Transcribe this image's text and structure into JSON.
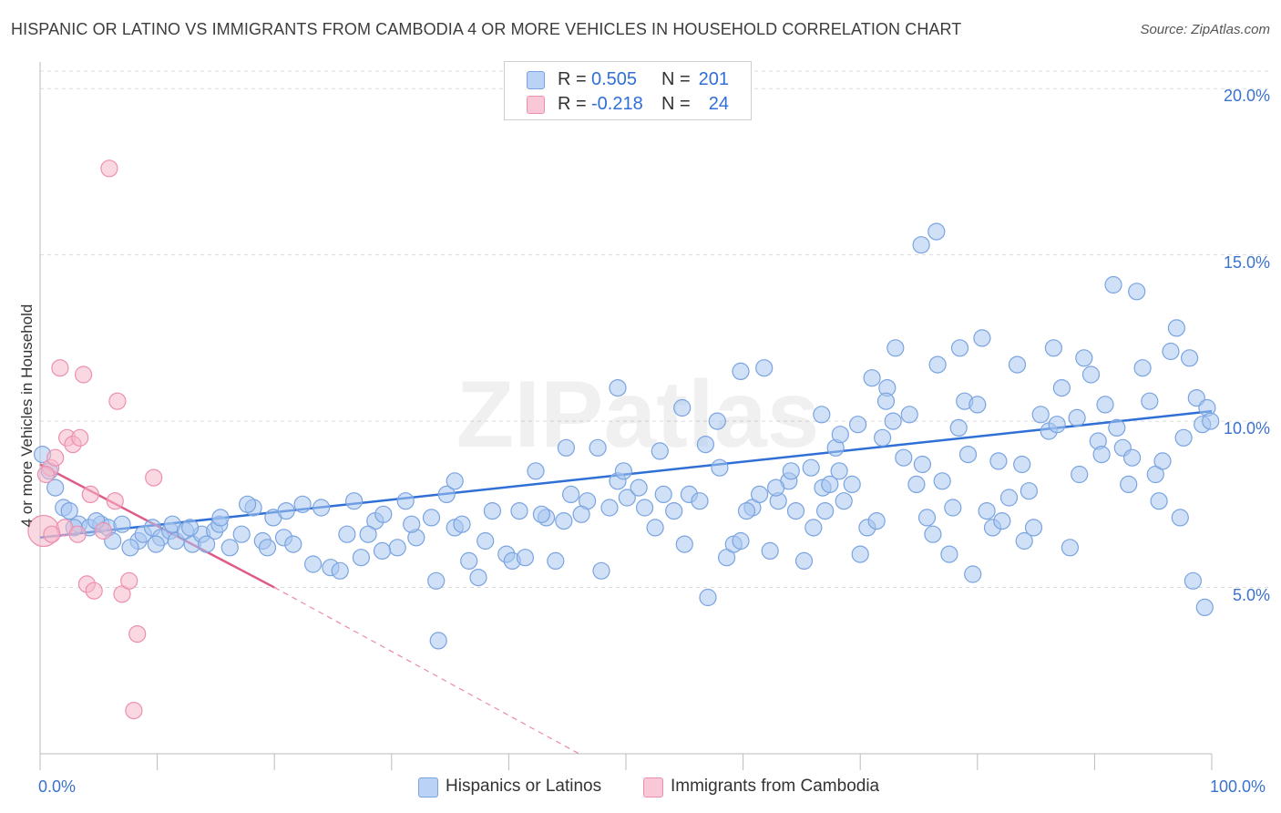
{
  "chart_data": {
    "type": "scatter",
    "title": "HISPANIC OR LATINO VS IMMIGRANTS FROM CAMBODIA 4 OR MORE VEHICLES IN HOUSEHOLD CORRELATION CHART",
    "source": "Source: ZipAtlas.com",
    "xlabel": "",
    "ylabel": "4 or more Vehicles in Household",
    "xlim": [
      0,
      100
    ],
    "ylim": [
      0,
      20.8
    ],
    "x_tick_labels": {
      "left": "0.0%",
      "right": "100.0%"
    },
    "y_ticks": [
      {
        "value": 5,
        "label": "5.0%"
      },
      {
        "value": 10,
        "label": "10.0%"
      },
      {
        "value": 15,
        "label": "15.0%"
      },
      {
        "value": 20,
        "label": "20.0%"
      }
    ],
    "watermark": "ZIPatlas",
    "legend": {
      "r_label": "R =",
      "n_label": "N =",
      "entries": [
        {
          "name": "Hispanics or Latinos",
          "r": "0.505",
          "n": "201",
          "color": "#a8c6f0"
        },
        {
          "name": "Immigrants from Cambodia",
          "r": "-0.218",
          "n": "24",
          "color": "#f5b8cb"
        }
      ]
    },
    "series": [
      {
        "name": "Hispanics or Latinos",
        "color": "#a8c6f0",
        "stroke": "#7aa4e0",
        "trend": {
          "x": [
            0,
            100
          ],
          "y": [
            6.5,
            10.3
          ],
          "color": "#2f6fd6"
        },
        "points": [
          [
            0.2,
            9.0
          ],
          [
            0.8,
            8.5
          ],
          [
            1.3,
            8.0
          ],
          [
            2.0,
            7.4
          ],
          [
            2.5,
            7.3
          ],
          [
            3.3,
            6.9
          ],
          [
            4.2,
            6.8
          ],
          [
            5.2,
            6.9
          ],
          [
            5.8,
            6.8
          ],
          [
            6.2,
            6.4
          ],
          [
            7.0,
            6.9
          ],
          [
            8.4,
            6.4
          ],
          [
            8.8,
            6.6
          ],
          [
            9.6,
            6.8
          ],
          [
            10.3,
            6.5
          ],
          [
            11.1,
            6.7
          ],
          [
            11.3,
            6.9
          ],
          [
            11.6,
            6.4
          ],
          [
            12.4,
            6.7
          ],
          [
            13.0,
            6.3
          ],
          [
            13.8,
            6.6
          ],
          [
            14.9,
            6.7
          ],
          [
            15.3,
            6.9
          ],
          [
            15.4,
            7.1
          ],
          [
            16.2,
            6.2
          ],
          [
            17.2,
            6.6
          ],
          [
            18.2,
            7.4
          ],
          [
            19.0,
            6.4
          ],
          [
            19.4,
            6.2
          ],
          [
            19.9,
            7.1
          ],
          [
            20.8,
            6.5
          ],
          [
            21.6,
            6.3
          ],
          [
            22.4,
            7.5
          ],
          [
            23.3,
            5.7
          ],
          [
            24.8,
            5.6
          ],
          [
            25.6,
            5.5
          ],
          [
            26.2,
            6.6
          ],
          [
            27.4,
            5.9
          ],
          [
            28.6,
            7.0
          ],
          [
            29.3,
            7.2
          ],
          [
            30.5,
            6.2
          ],
          [
            31.2,
            7.6
          ],
          [
            32.1,
            6.5
          ],
          [
            33.4,
            7.1
          ],
          [
            34.7,
            7.8
          ],
          [
            35.4,
            8.2
          ],
          [
            35.4,
            6.8
          ],
          [
            36.6,
            5.8
          ],
          [
            37.4,
            5.3
          ],
          [
            38.0,
            6.4
          ],
          [
            39.8,
            6.0
          ],
          [
            40.3,
            5.8
          ],
          [
            41.4,
            5.9
          ],
          [
            42.3,
            8.5
          ],
          [
            43.2,
            7.1
          ],
          [
            44.0,
            5.8
          ],
          [
            44.7,
            7.0
          ],
          [
            45.3,
            7.8
          ],
          [
            46.7,
            7.6
          ],
          [
            47.6,
            9.2
          ],
          [
            48.6,
            7.4
          ],
          [
            49.3,
            8.2
          ],
          [
            50.1,
            7.7
          ],
          [
            51.1,
            8.0
          ],
          [
            51.6,
            7.4
          ],
          [
            52.5,
            6.8
          ],
          [
            53.2,
            7.8
          ],
          [
            54.1,
            7.3
          ],
          [
            55.0,
            6.3
          ],
          [
            55.4,
            7.8
          ],
          [
            56.3,
            7.6
          ],
          [
            57.0,
            4.7
          ],
          [
            58.6,
            5.9
          ],
          [
            59.2,
            6.3
          ],
          [
            59.8,
            6.4
          ],
          [
            60.8,
            7.4
          ],
          [
            61.4,
            7.8
          ],
          [
            62.3,
            6.1
          ],
          [
            63.0,
            7.6
          ],
          [
            63.9,
            8.2
          ],
          [
            64.5,
            7.3
          ],
          [
            65.2,
            5.8
          ],
          [
            66.0,
            6.8
          ],
          [
            66.8,
            8.0
          ],
          [
            67.4,
            8.1
          ],
          [
            67.9,
            9.2
          ],
          [
            68.2,
            8.5
          ],
          [
            68.6,
            7.6
          ],
          [
            69.3,
            8.1
          ],
          [
            70.0,
            6.0
          ],
          [
            70.6,
            6.8
          ],
          [
            71.4,
            7.0
          ],
          [
            72.3,
            11.0
          ],
          [
            72.8,
            10.0
          ],
          [
            73.7,
            8.9
          ],
          [
            74.2,
            10.2
          ],
          [
            75.3,
            8.7
          ],
          [
            75.7,
            7.1
          ],
          [
            76.2,
            6.6
          ],
          [
            77.0,
            8.2
          ],
          [
            77.6,
            6.0
          ],
          [
            77.9,
            7.4
          ],
          [
            78.4,
            9.8
          ],
          [
            78.9,
            10.6
          ],
          [
            79.6,
            5.4
          ],
          [
            80.0,
            10.5
          ],
          [
            80.8,
            7.3
          ],
          [
            81.3,
            6.8
          ],
          [
            82.1,
            7.0
          ],
          [
            82.7,
            7.7
          ],
          [
            83.4,
            11.7
          ],
          [
            84.0,
            6.4
          ],
          [
            84.8,
            6.8
          ],
          [
            85.4,
            10.2
          ],
          [
            86.1,
            9.7
          ],
          [
            86.8,
            9.9
          ],
          [
            87.2,
            11.0
          ],
          [
            87.9,
            6.2
          ],
          [
            88.5,
            10.1
          ],
          [
            89.1,
            11.9
          ],
          [
            89.7,
            11.4
          ],
          [
            90.3,
            9.4
          ],
          [
            90.9,
            10.5
          ],
          [
            91.6,
            14.1
          ],
          [
            91.9,
            9.8
          ],
          [
            92.4,
            9.2
          ],
          [
            92.9,
            8.1
          ],
          [
            93.6,
            13.9
          ],
          [
            94.1,
            11.6
          ],
          [
            94.7,
            10.6
          ],
          [
            95.2,
            8.4
          ],
          [
            95.8,
            8.8
          ],
          [
            96.5,
            12.1
          ],
          [
            97.0,
            12.8
          ],
          [
            97.6,
            9.5
          ],
          [
            98.1,
            11.9
          ],
          [
            98.7,
            10.7
          ],
          [
            99.2,
            9.9
          ],
          [
            99.6,
            10.4
          ],
          [
            99.9,
            10.0
          ],
          [
            2.9,
            6.8
          ],
          [
            4.8,
            7.0
          ],
          [
            7.7,
            6.2
          ],
          [
            9.9,
            6.3
          ],
          [
            12.8,
            6.8
          ],
          [
            14.2,
            6.3
          ],
          [
            17.7,
            7.5
          ],
          [
            21.0,
            7.3
          ],
          [
            24.0,
            7.4
          ],
          [
            26.8,
            7.6
          ],
          [
            28.0,
            6.6
          ],
          [
            31.7,
            6.9
          ],
          [
            33.8,
            5.2
          ],
          [
            36.0,
            6.9
          ],
          [
            38.6,
            7.3
          ],
          [
            42.8,
            7.2
          ],
          [
            46.2,
            7.2
          ],
          [
            49.8,
            8.5
          ],
          [
            52.9,
            9.1
          ],
          [
            56.8,
            9.3
          ],
          [
            58.0,
            8.6
          ],
          [
            60.3,
            7.3
          ],
          [
            62.8,
            8.0
          ],
          [
            65.8,
            8.6
          ],
          [
            67.0,
            7.3
          ],
          [
            69.8,
            9.9
          ],
          [
            71.9,
            9.5
          ],
          [
            74.8,
            8.1
          ],
          [
            76.6,
            11.7
          ],
          [
            79.2,
            9.0
          ],
          [
            81.8,
            8.8
          ],
          [
            84.4,
            7.9
          ],
          [
            86.5,
            12.2
          ],
          [
            88.7,
            8.4
          ],
          [
            90.6,
            9.0
          ],
          [
            93.2,
            8.9
          ],
          [
            95.5,
            7.6
          ],
          [
            97.3,
            7.1
          ],
          [
            98.4,
            5.2
          ],
          [
            99.4,
            4.4
          ],
          [
            34.0,
            3.4
          ],
          [
            29.2,
            6.1
          ],
          [
            47.9,
            5.5
          ],
          [
            40.9,
            7.3
          ],
          [
            54.8,
            10.4
          ],
          [
            59.8,
            11.5
          ],
          [
            64.1,
            8.5
          ],
          [
            68.3,
            9.6
          ],
          [
            71.0,
            11.3
          ],
          [
            73.0,
            12.2
          ],
          [
            75.2,
            15.3
          ],
          [
            76.5,
            15.7
          ],
          [
            57.8,
            10.0
          ],
          [
            49.3,
            11.0
          ],
          [
            44.9,
            9.2
          ],
          [
            61.8,
            11.6
          ],
          [
            66.7,
            10.2
          ],
          [
            72.2,
            10.6
          ],
          [
            78.5,
            12.2
          ],
          [
            80.4,
            12.5
          ],
          [
            83.8,
            8.7
          ]
        ]
      },
      {
        "name": "Immigrants from Cambodia",
        "color": "#f5b8cb",
        "stroke": "#ec8fae",
        "trend": {
          "x": [
            0,
            20
          ],
          "y": [
            8.7,
            5.0
          ],
          "dash_to_x": 46.0,
          "dash_to_y": 0,
          "color": "#e05a88"
        },
        "points": [
          [
            0.3,
            6.7
          ],
          [
            0.9,
            8.6
          ],
          [
            1.3,
            8.9
          ],
          [
            1.7,
            11.6
          ],
          [
            2.3,
            9.5
          ],
          [
            2.8,
            9.3
          ],
          [
            3.4,
            9.5
          ],
          [
            3.7,
            11.4
          ],
          [
            4.0,
            5.1
          ],
          [
            4.3,
            7.8
          ],
          [
            4.6,
            4.9
          ],
          [
            5.4,
            6.7
          ],
          [
            5.9,
            17.6
          ],
          [
            6.4,
            7.6
          ],
          [
            6.6,
            10.6
          ],
          [
            7.0,
            4.8
          ],
          [
            7.6,
            5.2
          ],
          [
            8.0,
            1.3
          ],
          [
            8.3,
            3.6
          ],
          [
            9.7,
            8.3
          ],
          [
            2.1,
            6.8
          ],
          [
            0.5,
            8.4
          ],
          [
            3.2,
            6.6
          ],
          [
            1.0,
            6.6
          ]
        ]
      }
    ]
  }
}
